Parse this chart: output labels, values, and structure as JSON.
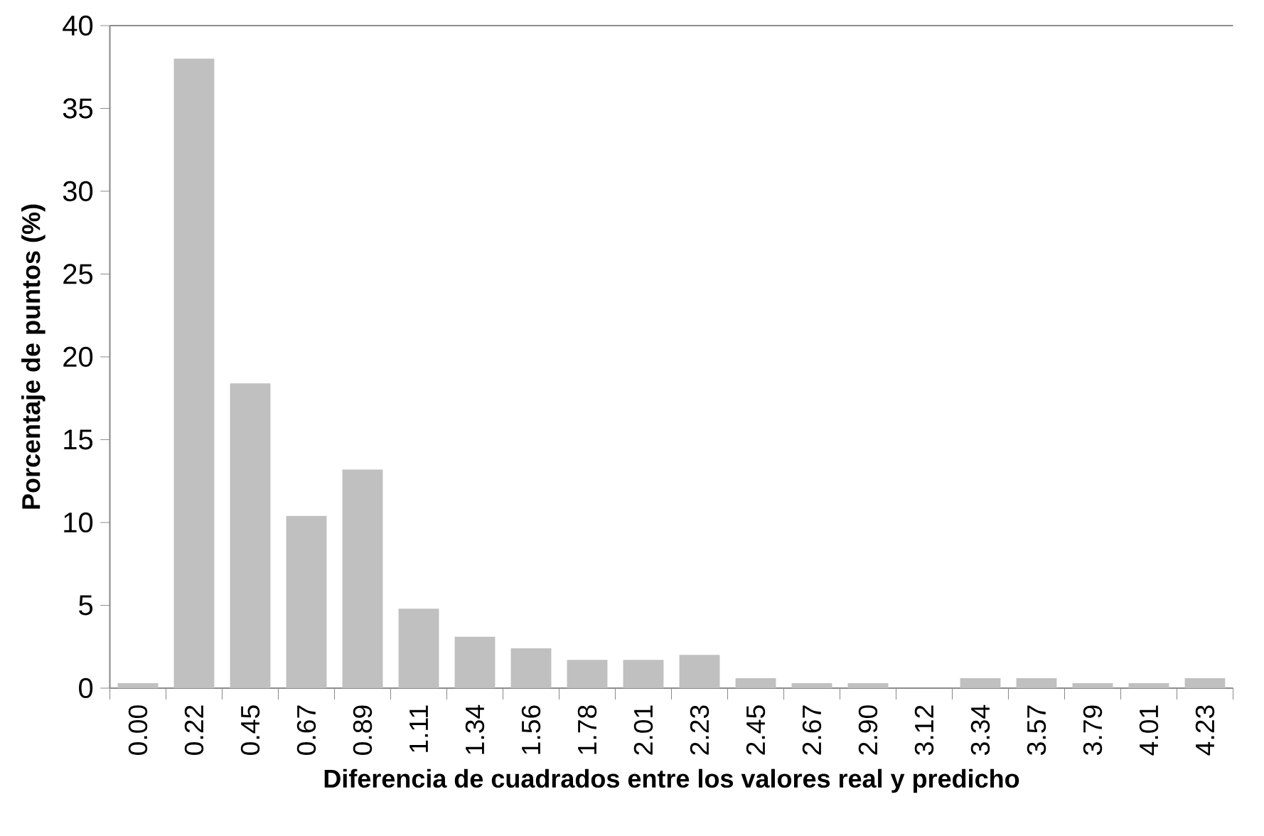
{
  "chart_data": {
    "type": "bar",
    "xlabel": "Diferencia de cuadrados entre los valores real y predicho",
    "ylabel": "Porcentaje de puntos (%)",
    "categories": [
      "0.00",
      "0.22",
      "0.45",
      "0.67",
      "0.89",
      "1.11",
      "1.34",
      "1.56",
      "1.78",
      "2.01",
      "2.23",
      "2.45",
      "2.67",
      "2.90",
      "3.12",
      "3.34",
      "3.57",
      "3.79",
      "4.01",
      "4.23"
    ],
    "values": [
      0.3,
      38,
      18.4,
      10.4,
      13.2,
      4.8,
      3.1,
      2.4,
      1.7,
      1.7,
      2.0,
      0.6,
      0.3,
      0.3,
      0,
      0.6,
      0.6,
      0.3,
      0.3,
      0.6
    ],
    "color": "#c0c0c0",
    "ylim": [
      0,
      40
    ],
    "yticks": [
      0,
      5,
      10,
      15,
      20,
      25,
      30,
      35,
      40
    ],
    "grid": false
  }
}
